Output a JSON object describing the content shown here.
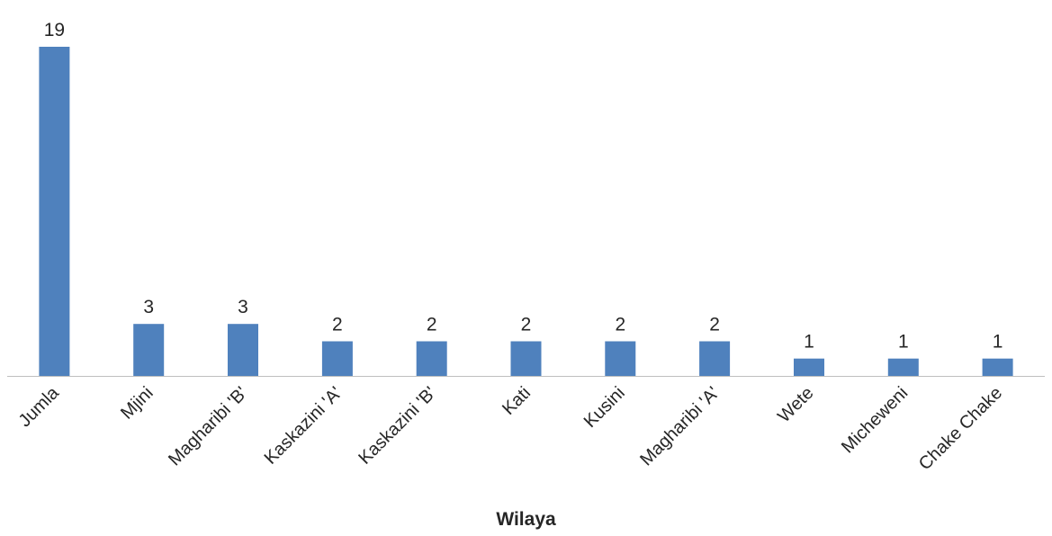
{
  "chart_data": {
    "type": "bar",
    "title": "",
    "xlabel": "Wilaya",
    "ylabel": "",
    "categories": [
      "Jumla",
      "Mjini",
      "Magharibi 'B'",
      "Kaskazini 'A'",
      "Kaskazini 'B'",
      "Kati",
      "Kusini",
      "Magharibi 'A'",
      "Wete",
      "Micheweni",
      "Chake Chake"
    ],
    "values": [
      19,
      3,
      3,
      2,
      2,
      2,
      2,
      2,
      1,
      1,
      1
    ],
    "ylim": [
      0,
      19
    ],
    "grid": false,
    "legend": "none",
    "data_labels": true,
    "bar_color": "#4f81bd"
  }
}
